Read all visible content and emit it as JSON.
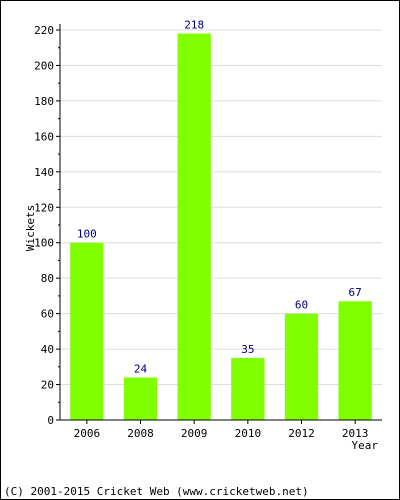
{
  "chart_data": {
    "type": "bar",
    "categories": [
      "2006",
      "2008",
      "2009",
      "2010",
      "2012",
      "2013"
    ],
    "values": [
      100,
      24,
      218,
      35,
      60,
      67
    ],
    "xlabel": "Year",
    "ylabel": "Wickets",
    "ylim": [
      0,
      220
    ],
    "ytick_step": 20,
    "grid": true,
    "bar_color": "#80ff00",
    "data_label_color": "#000080"
  },
  "footer": "(C) 2001-2015 Cricket Web (www.cricketweb.net)"
}
